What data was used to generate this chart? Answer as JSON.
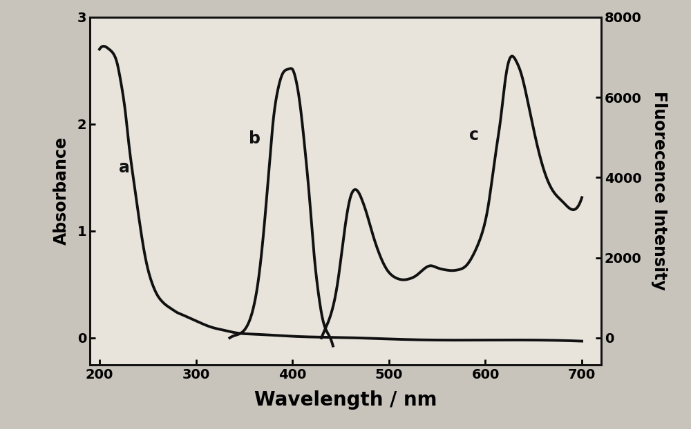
{
  "background_color": "#c8c4bc",
  "plot_bg_color": "#e8e4dc",
  "xlabel": "Wavelength / nm",
  "ylabel_left": "Absorbance",
  "ylabel_right": "Fluorecence Intensity",
  "xlim": [
    190,
    720
  ],
  "ylim_left": [
    -0.25,
    3.0
  ],
  "ylim_right": [
    -667,
    8000
  ],
  "xlabel_fontsize": 20,
  "ylabel_fontsize": 17,
  "tick_fontsize": 14,
  "label_fontsize": 17,
  "line_width": 2.8,
  "line_color": "#111111",
  "curve_a_x": [
    200,
    207,
    210,
    215,
    218,
    220,
    223,
    227,
    230,
    235,
    240,
    245,
    250,
    255,
    260,
    265,
    270,
    275,
    280,
    285,
    290,
    295,
    300,
    310,
    320,
    330,
    340,
    360,
    380,
    400,
    430,
    460,
    500,
    550,
    600,
    650,
    700
  ],
  "curve_a_y": [
    2.7,
    2.72,
    2.7,
    2.65,
    2.58,
    2.5,
    2.35,
    2.1,
    1.85,
    1.5,
    1.18,
    0.88,
    0.65,
    0.5,
    0.4,
    0.34,
    0.3,
    0.27,
    0.24,
    0.22,
    0.2,
    0.18,
    0.16,
    0.12,
    0.09,
    0.07,
    0.05,
    0.035,
    0.025,
    0.015,
    0.007,
    0.002,
    -0.01,
    -0.02,
    -0.02,
    -0.02,
    -0.03
  ],
  "curve_b_x": [
    335,
    345,
    355,
    360,
    365,
    370,
    375,
    380,
    385,
    390,
    395,
    398,
    400,
    403,
    408,
    413,
    418,
    422,
    427,
    432,
    437,
    442
  ],
  "curve_b_fl": [
    0,
    100,
    400,
    800,
    1500,
    2600,
    4000,
    5400,
    6200,
    6600,
    6700,
    6720,
    6700,
    6500,
    5800,
    4700,
    3400,
    2200,
    1100,
    400,
    100,
    -200
  ],
  "curve_c_x": [
    430,
    440,
    447,
    453,
    460,
    465,
    468,
    472,
    477,
    483,
    490,
    498,
    507,
    515,
    522,
    528,
    533,
    538,
    543,
    550,
    558,
    565,
    572,
    580,
    588,
    595,
    603,
    610,
    616,
    621,
    626,
    632,
    637,
    643,
    650,
    658,
    665,
    672,
    680,
    690,
    700
  ],
  "curve_c_fl": [
    0,
    600,
    1400,
    2500,
    3500,
    3700,
    3650,
    3450,
    3100,
    2600,
    2100,
    1700,
    1500,
    1450,
    1480,
    1550,
    1650,
    1750,
    1800,
    1750,
    1700,
    1680,
    1700,
    1800,
    2100,
    2500,
    3300,
    4500,
    5500,
    6500,
    7000,
    6900,
    6600,
    6000,
    5200,
    4400,
    3900,
    3600,
    3400,
    3200,
    3500
  ],
  "xticks": [
    200,
    300,
    400,
    500,
    600,
    700
  ],
  "yticks_left": [
    0,
    1,
    2,
    3
  ],
  "yticks_right": [
    0,
    2000,
    4000,
    6000,
    8000
  ]
}
